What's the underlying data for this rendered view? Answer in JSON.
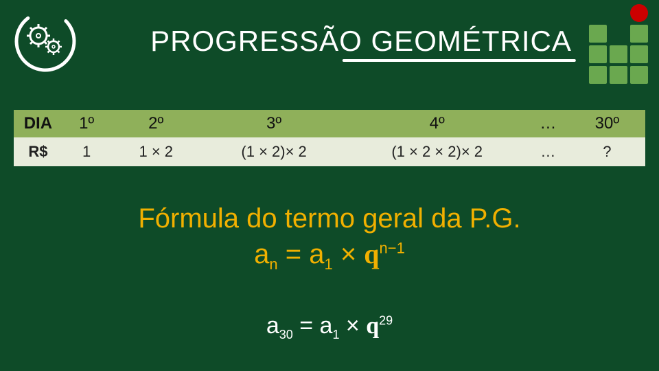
{
  "colors": {
    "background": "#0e4b28",
    "title_text": "#ffffff",
    "underline": "#ffffff",
    "grid_square": "#6aa84f",
    "grid_red": "#cc0000",
    "table_header_bg": "#8fb05a",
    "table_header_text": "#111111",
    "table_row_bg": "#e8ecdc",
    "table_row_text": "#222222",
    "formula_accent": "#f1b000",
    "formula_white": "#ffffff"
  },
  "title": "PROGRESSÃO GEOMÉTRICA",
  "gear_icon": "gear-icon",
  "grid_logo": {
    "rows": 4,
    "cols": 3,
    "cells": [
      "empty",
      "empty",
      "red",
      "green",
      "empty",
      "green",
      "green",
      "green",
      "green",
      "green",
      "green",
      "green"
    ]
  },
  "table": {
    "type": "table",
    "header_label": "DIA",
    "row_label": "R$",
    "headers": [
      "1º",
      "2º",
      "3º",
      "4º",
      "…",
      "30º"
    ],
    "values": [
      "1",
      "1 × 2",
      "(1 × 2)× 2",
      "(1 × 2 × 2)× 2",
      "…",
      "?"
    ],
    "col_weights": [
      70,
      70,
      130,
      210,
      260,
      60,
      110
    ],
    "header_fontsize": 24,
    "cell_fontsize": 22
  },
  "formula_title": "Fórmula do termo geral da P.G.",
  "formula_general_html": "a<sub>n</sub> = a<sub>1</sub> × <span class='q'>q</span><sup>n−1</sup>",
  "formula_instance_html": "a<sub>30</sub> = a<sub>1</sub> × <span class='q'>q</span><sup>29</sup>",
  "typography": {
    "title_fontsize": 42,
    "formula_fontsize": 40,
    "formula2_fontsize": 34,
    "font_family": "Comic Sans MS / handwritten"
  }
}
